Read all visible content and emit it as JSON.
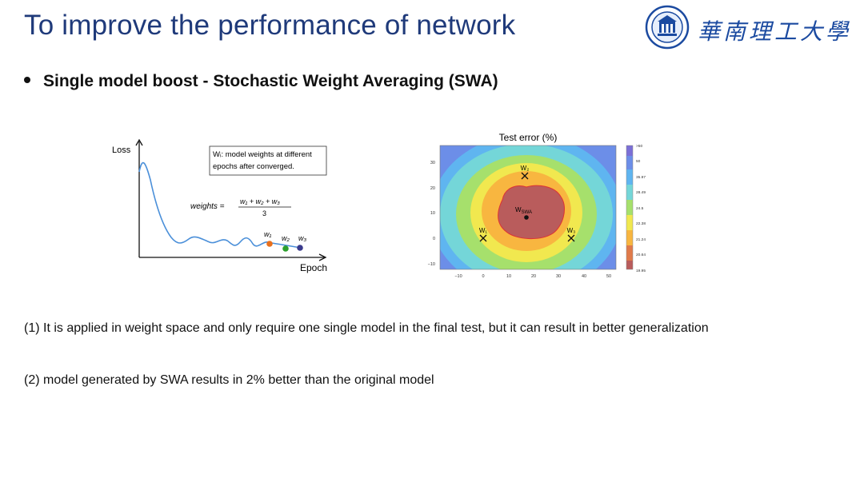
{
  "slide": {
    "title": "To improve the performance of network",
    "bullet": "Single model boost - Stochastic Weight Averaging (SWA)",
    "paragraphs": [
      "(1) It is applied in weight space and only require one single model in the final test, but it can result in better generalization",
      "(2) model generated by SWA results in 2% better than the original model"
    ]
  },
  "logo": {
    "text": "華南理工大學",
    "icon": "university-seal-icon"
  },
  "left_figure": {
    "ylabel": "Loss",
    "xlabel": "Epoch",
    "legend_line1": "Wᵢ: model weights at different",
    "legend_line2": "epochs after converged.",
    "formula_lhs": "weights =",
    "formula_num": "w₁ + w₂ + w₃",
    "formula_den": "3",
    "point_labels": [
      "w₁",
      "w₂",
      "w₃"
    ],
    "point_colors": [
      "#e8701d",
      "#2ca02c",
      "#3a3a8c"
    ],
    "curve_color": "#4a8fd9"
  },
  "chart_data": {
    "type": "heatmap",
    "title": "Test error (%)",
    "xticks": [
      "−10",
      "0",
      "10",
      "20",
      "30",
      "40",
      "50"
    ],
    "yticks": [
      "30",
      "20",
      "10",
      "0",
      "−10"
    ],
    "colorbar_labels": [
      ">50",
      "50",
      "35.97",
      "28.49",
      "24.5",
      "22.38",
      "21.24",
      "20.64",
      "19.95"
    ],
    "points": [
      {
        "label": "W₁",
        "marker": "x",
        "x": 0,
        "y": 2
      },
      {
        "label": "W₂",
        "marker": "x",
        "x": 17,
        "y": 25
      },
      {
        "label": "W₃",
        "marker": "x",
        "x": 35,
        "y": 2
      },
      {
        "label": "W",
        "sublabel": "SWA",
        "marker": "dot",
        "x": 17,
        "y": 8
      }
    ]
  }
}
